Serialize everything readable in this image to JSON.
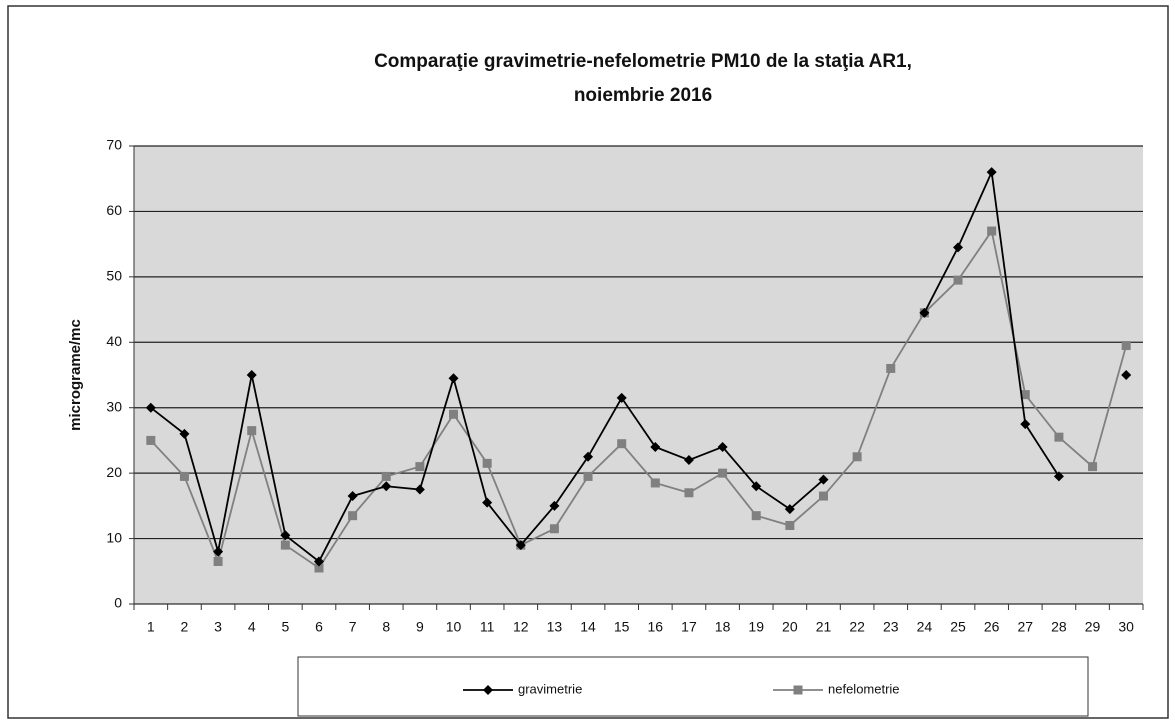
{
  "chart_data": {
    "type": "line",
    "title": [
      "Comparaţie gravimetrie-nefelometrie PM10 de la staţia AR1,",
      "noiembrie 2016"
    ],
    "y_label": "micrograme/mc",
    "categories": [
      "1",
      "2",
      "3",
      "4",
      "5",
      "6",
      "7",
      "8",
      "9",
      "10",
      "11",
      "12",
      "13",
      "14",
      "15",
      "16",
      "17",
      "18",
      "19",
      "20",
      "21",
      "22",
      "23",
      "24",
      "25",
      "26",
      "27",
      "28",
      "29",
      "30"
    ],
    "series": [
      {
        "name": "gravimetrie",
        "color": "#000000",
        "marker": "diamond",
        "values": [
          30,
          26,
          8,
          35,
          10.5,
          6.5,
          16.5,
          18,
          17.5,
          34.5,
          15.5,
          9,
          15,
          22.5,
          31.5,
          24,
          22,
          24,
          18,
          14.5,
          19,
          null,
          null,
          44.5,
          54.5,
          66,
          27.5,
          19.5,
          null,
          35
        ]
      },
      {
        "name": "nefelometrie",
        "color": "#808080",
        "marker": "square",
        "values": [
          25,
          19.5,
          6.5,
          26.5,
          9,
          5.5,
          13.5,
          19.5,
          21,
          29,
          21.5,
          9,
          11.5,
          19.5,
          24.5,
          18.5,
          17,
          20,
          13.5,
          12,
          16.5,
          22.5,
          36,
          44.5,
          49.5,
          57,
          32,
          25.5,
          21,
          39.5
        ]
      }
    ],
    "ylim": [
      0,
      70
    ],
    "yticks": [
      0,
      10,
      20,
      30,
      40,
      50,
      60,
      70
    ],
    "grid": true,
    "legend": "bottom"
  }
}
